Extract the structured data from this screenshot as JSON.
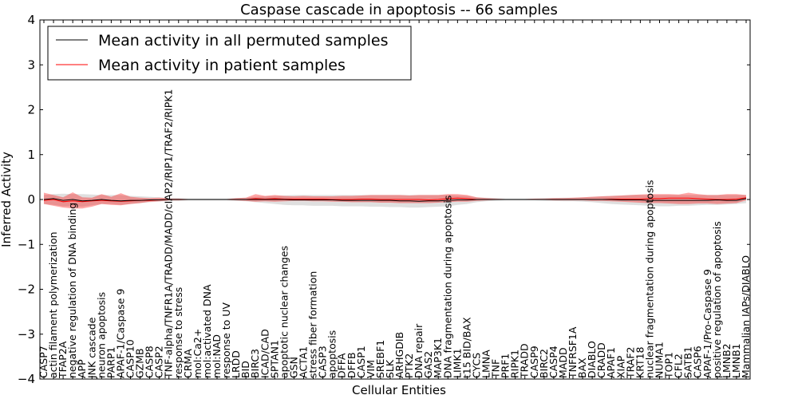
{
  "chart_data": {
    "type": "line",
    "title": "Caspase cascade in apoptosis -- 66 samples",
    "xlabel": "Cellular Entities",
    "ylabel": "Inferred Activity",
    "ylim": [
      -4,
      4
    ],
    "yticks": [
      -4,
      -3,
      -2,
      -1,
      0,
      1,
      2,
      3,
      4
    ],
    "ytick_labels": [
      "−4",
      "−3",
      "−2",
      "−1",
      "0",
      "1",
      "2",
      "3",
      "4"
    ],
    "legend_position": "upper-left",
    "categories": [
      "CASP7",
      "actin filament polymerization",
      "TFAP2A",
      "negative regulation of DNA binding",
      "APP",
      "JNK cascade",
      "neuron apoptosis",
      "PARP1",
      "APAF-1/Caspase 9",
      "CASP10",
      "GZMB",
      "CASP8",
      "CASP2",
      "TNF-alpha/TNFR1A/TRADD/MADD/cIAP2/RIP1/TRAF2/RIPK1",
      "response to stress",
      "CRMA",
      "mol:Ca2+",
      "mol:activated DNA",
      "mol:NAD",
      "response to UV",
      "LRDD",
      "BID",
      "BIRC3",
      "ICAD/CAD",
      "SPTAN1",
      "apoptotic nuclear changes",
      "GSN",
      "ACTA1",
      "stress fiber formation",
      "CASP3",
      "apoptosis",
      "DFFA",
      "DFFB",
      "CASP1",
      "VIM",
      "SREBF1",
      "SLK",
      "ARHGDIB",
      "PTK2",
      "DNA repair",
      "GAS2",
      "MAP3K1",
      "DNA fragmentation during apoptosis",
      "LIMK1",
      "t15 BID/BAX",
      "CYCS",
      "LMNA",
      "TNF",
      "PRF1",
      "RIPK1",
      "TRADD",
      "CASP9",
      "BIRC2",
      "CASP4",
      "MADD",
      "TNFRSF1A",
      "BAX",
      "DIABLO",
      "CRADD",
      "APAF1",
      "XIAP",
      "TRAF2",
      "KRT18",
      "nuclear fragmentation during apoptosis",
      "NUMA1",
      "TOP1",
      "CFL2",
      "SATB1",
      "CASP6",
      "APAF-1/Pro-Caspase 9",
      "positive regulation of apoptosis",
      "LMNB2",
      "LMNB1",
      "Mammalian IAPs/DIABLO"
    ],
    "series": [
      {
        "name": "Mean activity in all permuted samples",
        "color": "#000000",
        "values": [
          0.0,
          0.02,
          -0.02,
          0.0,
          -0.03,
          -0.02,
          0.0,
          -0.02,
          -0.03,
          -0.02,
          -0.02,
          -0.01,
          -0.01,
          0.0,
          0.0,
          0.0,
          0.0,
          0.0,
          0.0,
          0.0,
          0.0,
          0.0,
          0.0,
          0.0,
          0.0,
          0.0,
          -0.01,
          -0.01,
          -0.01,
          -0.01,
          -0.01,
          -0.02,
          -0.02,
          -0.02,
          -0.02,
          -0.02,
          -0.02,
          -0.03,
          -0.03,
          -0.04,
          -0.03,
          -0.03,
          -0.02,
          -0.01,
          -0.01,
          0.0,
          0.0,
          0.0,
          0.0,
          0.0,
          0.0,
          0.0,
          0.0,
          0.0,
          0.0,
          0.0,
          0.0,
          0.0,
          0.0,
          0.0,
          -0.01,
          -0.01,
          -0.01,
          -0.02,
          -0.02,
          -0.02,
          -0.02,
          -0.02,
          -0.02,
          -0.02,
          -0.01,
          -0.02,
          -0.02,
          0.02
        ],
        "band": {
          "color": "#b0b0b0",
          "low": [
            -0.1,
            -0.12,
            -0.15,
            -0.15,
            -0.16,
            -0.13,
            -0.1,
            -0.1,
            -0.12,
            -0.1,
            -0.08,
            -0.06,
            -0.05,
            -0.03,
            -0.03,
            -0.02,
            -0.02,
            -0.02,
            -0.02,
            -0.02,
            -0.03,
            -0.04,
            -0.06,
            -0.08,
            -0.1,
            -0.12,
            -0.13,
            -0.13,
            -0.14,
            -0.14,
            -0.14,
            -0.15,
            -0.15,
            -0.15,
            -0.16,
            -0.16,
            -0.17,
            -0.17,
            -0.18,
            -0.18,
            -0.17,
            -0.16,
            -0.15,
            -0.12,
            -0.1,
            -0.06,
            -0.04,
            -0.03,
            -0.02,
            -0.02,
            -0.02,
            -0.02,
            -0.03,
            -0.03,
            -0.04,
            -0.04,
            -0.05,
            -0.06,
            -0.08,
            -0.1,
            -0.11,
            -0.12,
            -0.13,
            -0.14,
            -0.15,
            -0.15,
            -0.14,
            -0.14,
            -0.13,
            -0.12,
            -0.12,
            -0.11,
            -0.1,
            -0.08
          ],
          "high": [
            0.1,
            0.12,
            0.13,
            0.12,
            0.12,
            0.11,
            0.1,
            0.1,
            0.1,
            0.08,
            0.07,
            0.06,
            0.05,
            0.03,
            0.03,
            0.02,
            0.02,
            0.02,
            0.02,
            0.02,
            0.03,
            0.04,
            0.06,
            0.07,
            0.08,
            0.09,
            0.1,
            0.1,
            0.1,
            0.1,
            0.1,
            0.1,
            0.1,
            0.1,
            0.1,
            0.1,
            0.1,
            0.1,
            0.1,
            0.1,
            0.1,
            0.1,
            0.1,
            0.09,
            0.08,
            0.05,
            0.04,
            0.03,
            0.02,
            0.02,
            0.02,
            0.02,
            0.03,
            0.03,
            0.04,
            0.04,
            0.05,
            0.06,
            0.07,
            0.08,
            0.09,
            0.1,
            0.1,
            0.1,
            0.1,
            0.1,
            0.1,
            0.1,
            0.1,
            0.1,
            0.1,
            0.1,
            0.1,
            0.1
          ]
        }
      },
      {
        "name": "Mean activity in patient samples",
        "color": "#ff0000",
        "values": [
          -0.02,
          0.0,
          -0.05,
          -0.03,
          -0.05,
          -0.03,
          -0.02,
          -0.03,
          -0.04,
          -0.03,
          -0.02,
          -0.02,
          -0.01,
          0.0,
          0.0,
          0.0,
          0.0,
          0.0,
          0.0,
          0.0,
          0.0,
          0.0,
          0.02,
          0.01,
          0.02,
          0.01,
          0.01,
          0.01,
          0.01,
          0.01,
          0.0,
          0.0,
          0.0,
          0.01,
          0.01,
          0.0,
          0.0,
          0.0,
          0.0,
          0.0,
          -0.01,
          0.0,
          0.02,
          0.03,
          0.02,
          0.0,
          0.0,
          0.0,
          0.0,
          0.0,
          0.0,
          0.0,
          0.0,
          0.0,
          0.0,
          0.0,
          0.0,
          0.0,
          0.0,
          0.01,
          0.01,
          0.01,
          0.01,
          0.02,
          0.02,
          0.03,
          0.03,
          0.03,
          0.02,
          0.01,
          0.0,
          0.0,
          0.01,
          0.04
        ],
        "band": {
          "color": "#ff0000",
          "low": [
            -0.1,
            -0.14,
            -0.18,
            -0.2,
            -0.2,
            -0.16,
            -0.1,
            -0.12,
            -0.13,
            -0.1,
            -0.08,
            -0.05,
            -0.04,
            -0.02,
            -0.02,
            -0.01,
            -0.01,
            -0.01,
            -0.01,
            -0.01,
            -0.02,
            -0.03,
            -0.05,
            -0.04,
            -0.05,
            -0.04,
            -0.03,
            -0.03,
            -0.04,
            -0.04,
            -0.05,
            -0.05,
            -0.06,
            -0.06,
            -0.06,
            -0.07,
            -0.07,
            -0.08,
            -0.08,
            -0.08,
            -0.08,
            -0.07,
            -0.06,
            -0.05,
            -0.05,
            -0.03,
            -0.02,
            -0.01,
            -0.01,
            -0.01,
            -0.01,
            -0.01,
            -0.01,
            -0.02,
            -0.02,
            -0.02,
            -0.02,
            -0.03,
            -0.03,
            -0.04,
            -0.05,
            -0.06,
            -0.07,
            -0.08,
            -0.08,
            -0.09,
            -0.1,
            -0.1,
            -0.09,
            -0.09,
            -0.1,
            -0.09,
            -0.08,
            -0.02
          ],
          "high": [
            0.15,
            0.1,
            0.05,
            0.16,
            0.05,
            0.04,
            0.12,
            0.06,
            0.14,
            0.06,
            0.04,
            0.03,
            0.04,
            0.02,
            0.02,
            0.01,
            0.01,
            0.01,
            0.01,
            0.01,
            0.03,
            0.04,
            0.12,
            0.08,
            0.1,
            0.08,
            0.07,
            0.08,
            0.07,
            0.07,
            0.07,
            0.08,
            0.08,
            0.09,
            0.1,
            0.1,
            0.1,
            0.1,
            0.09,
            0.1,
            0.1,
            0.1,
            0.12,
            0.12,
            0.1,
            0.05,
            0.03,
            0.02,
            0.01,
            0.01,
            0.01,
            0.02,
            0.02,
            0.03,
            0.03,
            0.04,
            0.05,
            0.06,
            0.07,
            0.08,
            0.09,
            0.1,
            0.11,
            0.12,
            0.12,
            0.12,
            0.11,
            0.15,
            0.12,
            0.1,
            0.1,
            0.12,
            0.12,
            0.1
          ]
        }
      }
    ]
  }
}
